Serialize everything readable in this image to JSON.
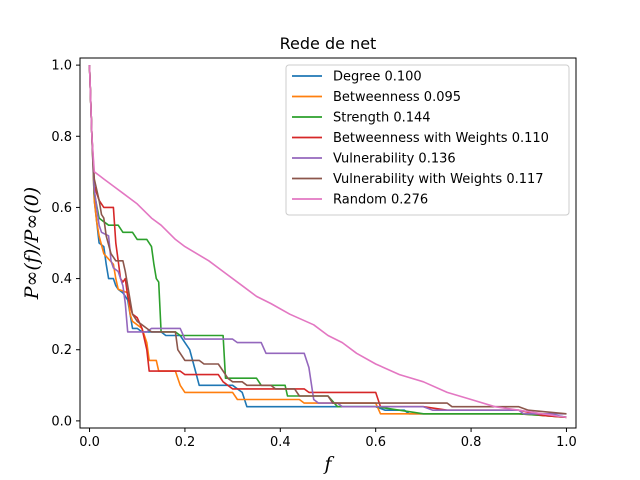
{
  "chart_data": {
    "type": "line",
    "title": "Rede de net",
    "xlabel": "f",
    "ylabel": "P∞(f)/P∞(0)",
    "xlim": [
      -0.02,
      1.02
    ],
    "ylim": [
      -0.02,
      1.02
    ],
    "xticks": [
      "0.0",
      "0.2",
      "0.4",
      "0.6",
      "0.8",
      "1.0"
    ],
    "yticks": [
      "0.0",
      "0.2",
      "0.4",
      "0.6",
      "0.8",
      "1.0"
    ],
    "xtick_values": [
      0,
      0.2,
      0.4,
      0.6,
      0.8,
      1.0
    ],
    "ytick_values": [
      0,
      0.2,
      0.4,
      0.6,
      0.8,
      1.0
    ],
    "grid": false,
    "legend_position": "top-right",
    "series": [
      {
        "name": "Degree 0.100",
        "color": "#1f77b4",
        "points": [
          [
            0,
            1.0
          ],
          [
            0.005,
            0.8
          ],
          [
            0.01,
            0.62
          ],
          [
            0.015,
            0.56
          ],
          [
            0.02,
            0.5
          ],
          [
            0.03,
            0.49
          ],
          [
            0.035,
            0.44
          ],
          [
            0.04,
            0.4
          ],
          [
            0.05,
            0.4
          ],
          [
            0.055,
            0.38
          ],
          [
            0.06,
            0.37
          ],
          [
            0.07,
            0.36
          ],
          [
            0.08,
            0.34
          ],
          [
            0.085,
            0.3
          ],
          [
            0.09,
            0.26
          ],
          [
            0.1,
            0.26
          ],
          [
            0.11,
            0.25
          ],
          [
            0.15,
            0.25
          ],
          [
            0.16,
            0.24
          ],
          [
            0.19,
            0.24
          ],
          [
            0.2,
            0.22
          ],
          [
            0.21,
            0.2
          ],
          [
            0.22,
            0.15
          ],
          [
            0.23,
            0.1
          ],
          [
            0.3,
            0.1
          ],
          [
            0.32,
            0.08
          ],
          [
            0.33,
            0.04
          ],
          [
            0.45,
            0.04
          ],
          [
            0.46,
            0.04
          ],
          [
            0.53,
            0.04
          ],
          [
            0.54,
            0.04
          ],
          [
            0.6,
            0.04
          ],
          [
            0.62,
            0.03
          ],
          [
            0.66,
            0.03
          ],
          [
            0.67,
            0.02
          ],
          [
            0.9,
            0.02
          ],
          [
            0.95,
            0.02
          ],
          [
            0.98,
            0.015
          ],
          [
            1.0,
            0.01
          ]
        ]
      },
      {
        "name": "Betweenness 0.095",
        "color": "#ff7f0e",
        "points": [
          [
            0,
            1.0
          ],
          [
            0.005,
            0.8
          ],
          [
            0.01,
            0.62
          ],
          [
            0.015,
            0.56
          ],
          [
            0.02,
            0.52
          ],
          [
            0.03,
            0.47
          ],
          [
            0.05,
            0.44
          ],
          [
            0.055,
            0.4
          ],
          [
            0.06,
            0.37
          ],
          [
            0.08,
            0.36
          ],
          [
            0.085,
            0.3
          ],
          [
            0.09,
            0.28
          ],
          [
            0.1,
            0.27
          ],
          [
            0.11,
            0.26
          ],
          [
            0.12,
            0.22
          ],
          [
            0.125,
            0.17
          ],
          [
            0.14,
            0.17
          ],
          [
            0.145,
            0.14
          ],
          [
            0.18,
            0.14
          ],
          [
            0.19,
            0.1
          ],
          [
            0.2,
            0.08
          ],
          [
            0.3,
            0.08
          ],
          [
            0.31,
            0.06
          ],
          [
            0.4,
            0.06
          ],
          [
            0.44,
            0.06
          ],
          [
            0.45,
            0.05
          ],
          [
            0.6,
            0.05
          ],
          [
            0.61,
            0.02
          ],
          [
            0.7,
            0.02
          ],
          [
            0.9,
            0.02
          ],
          [
            0.95,
            0.015
          ],
          [
            1.0,
            0.01
          ]
        ]
      },
      {
        "name": "Strength 0.144",
        "color": "#2ca02c",
        "points": [
          [
            0,
            1.0
          ],
          [
            0.005,
            0.8
          ],
          [
            0.01,
            0.64
          ],
          [
            0.02,
            0.57
          ],
          [
            0.03,
            0.56
          ],
          [
            0.04,
            0.55
          ],
          [
            0.06,
            0.55
          ],
          [
            0.07,
            0.53
          ],
          [
            0.09,
            0.53
          ],
          [
            0.1,
            0.51
          ],
          [
            0.12,
            0.51
          ],
          [
            0.13,
            0.49
          ],
          [
            0.135,
            0.44
          ],
          [
            0.14,
            0.4
          ],
          [
            0.145,
            0.39
          ],
          [
            0.15,
            0.25
          ],
          [
            0.18,
            0.25
          ],
          [
            0.19,
            0.24
          ],
          [
            0.28,
            0.24
          ],
          [
            0.285,
            0.12
          ],
          [
            0.35,
            0.12
          ],
          [
            0.36,
            0.1
          ],
          [
            0.41,
            0.1
          ],
          [
            0.415,
            0.07
          ],
          [
            0.5,
            0.07
          ],
          [
            0.52,
            0.04
          ],
          [
            0.6,
            0.04
          ],
          [
            0.65,
            0.03
          ],
          [
            0.7,
            0.02
          ],
          [
            0.9,
            0.02
          ],
          [
            0.95,
            0.015
          ],
          [
            1.0,
            0.01
          ]
        ]
      },
      {
        "name": "Betweenness with Weights 0.110",
        "color": "#d62728",
        "points": [
          [
            0,
            1.0
          ],
          [
            0.005,
            0.8
          ],
          [
            0.01,
            0.66
          ],
          [
            0.02,
            0.62
          ],
          [
            0.03,
            0.6
          ],
          [
            0.05,
            0.6
          ],
          [
            0.055,
            0.5
          ],
          [
            0.06,
            0.45
          ],
          [
            0.065,
            0.4
          ],
          [
            0.07,
            0.39
          ],
          [
            0.075,
            0.4
          ],
          [
            0.08,
            0.35
          ],
          [
            0.09,
            0.3
          ],
          [
            0.1,
            0.29
          ],
          [
            0.11,
            0.26
          ],
          [
            0.12,
            0.2
          ],
          [
            0.125,
            0.14
          ],
          [
            0.19,
            0.14
          ],
          [
            0.2,
            0.13
          ],
          [
            0.27,
            0.13
          ],
          [
            0.28,
            0.11
          ],
          [
            0.3,
            0.09
          ],
          [
            0.45,
            0.09
          ],
          [
            0.46,
            0.08
          ],
          [
            0.6,
            0.08
          ],
          [
            0.61,
            0.04
          ],
          [
            0.7,
            0.04
          ],
          [
            0.75,
            0.03
          ],
          [
            0.9,
            0.03
          ],
          [
            0.95,
            0.015
          ],
          [
            1.0,
            0.01
          ]
        ]
      },
      {
        "name": "Vulnerability 0.136",
        "color": "#9467bd",
        "points": [
          [
            0,
            1.0
          ],
          [
            0.005,
            0.8
          ],
          [
            0.01,
            0.65
          ],
          [
            0.02,
            0.55
          ],
          [
            0.025,
            0.53
          ],
          [
            0.04,
            0.52
          ],
          [
            0.045,
            0.45
          ],
          [
            0.05,
            0.43
          ],
          [
            0.06,
            0.42
          ],
          [
            0.07,
            0.38
          ],
          [
            0.075,
            0.33
          ],
          [
            0.08,
            0.25
          ],
          [
            0.12,
            0.25
          ],
          [
            0.13,
            0.26
          ],
          [
            0.19,
            0.26
          ],
          [
            0.2,
            0.23
          ],
          [
            0.3,
            0.23
          ],
          [
            0.31,
            0.22
          ],
          [
            0.36,
            0.22
          ],
          [
            0.37,
            0.19
          ],
          [
            0.45,
            0.19
          ],
          [
            0.46,
            0.15
          ],
          [
            0.47,
            0.06
          ],
          [
            0.48,
            0.05
          ],
          [
            0.52,
            0.05
          ],
          [
            0.53,
            0.04
          ],
          [
            0.7,
            0.04
          ],
          [
            0.72,
            0.03
          ],
          [
            0.9,
            0.03
          ],
          [
            0.91,
            0.02
          ],
          [
            1.0,
            0.02
          ]
        ]
      },
      {
        "name": "Vulnerability with Weights 0.117",
        "color": "#8c564b",
        "points": [
          [
            0,
            1.0
          ],
          [
            0.005,
            0.8
          ],
          [
            0.01,
            0.68
          ],
          [
            0.02,
            0.62
          ],
          [
            0.025,
            0.58
          ],
          [
            0.03,
            0.57
          ],
          [
            0.035,
            0.52
          ],
          [
            0.045,
            0.47
          ],
          [
            0.05,
            0.46
          ],
          [
            0.055,
            0.45
          ],
          [
            0.07,
            0.45
          ],
          [
            0.075,
            0.42
          ],
          [
            0.08,
            0.38
          ],
          [
            0.09,
            0.3
          ],
          [
            0.1,
            0.28
          ],
          [
            0.11,
            0.27
          ],
          [
            0.12,
            0.26
          ],
          [
            0.13,
            0.25
          ],
          [
            0.18,
            0.25
          ],
          [
            0.185,
            0.2
          ],
          [
            0.2,
            0.17
          ],
          [
            0.23,
            0.17
          ],
          [
            0.24,
            0.16
          ],
          [
            0.27,
            0.16
          ],
          [
            0.28,
            0.14
          ],
          [
            0.29,
            0.12
          ],
          [
            0.3,
            0.11
          ],
          [
            0.32,
            0.11
          ],
          [
            0.33,
            0.1
          ],
          [
            0.38,
            0.1
          ],
          [
            0.39,
            0.09
          ],
          [
            0.43,
            0.09
          ],
          [
            0.44,
            0.07
          ],
          [
            0.5,
            0.07
          ],
          [
            0.51,
            0.05
          ],
          [
            0.75,
            0.05
          ],
          [
            0.76,
            0.04
          ],
          [
            0.9,
            0.04
          ],
          [
            0.92,
            0.03
          ],
          [
            1.0,
            0.02
          ]
        ]
      },
      {
        "name": "Random 0.276",
        "color": "#e377c2",
        "points": [
          [
            0,
            1.0
          ],
          [
            0.005,
            0.8
          ],
          [
            0.01,
            0.7
          ],
          [
            0.02,
            0.69
          ],
          [
            0.03,
            0.68
          ],
          [
            0.05,
            0.66
          ],
          [
            0.07,
            0.64
          ],
          [
            0.1,
            0.61
          ],
          [
            0.13,
            0.57
          ],
          [
            0.15,
            0.55
          ],
          [
            0.18,
            0.51
          ],
          [
            0.2,
            0.49
          ],
          [
            0.25,
            0.45
          ],
          [
            0.28,
            0.42
          ],
          [
            0.32,
            0.38
          ],
          [
            0.35,
            0.35
          ],
          [
            0.38,
            0.33
          ],
          [
            0.42,
            0.3
          ],
          [
            0.47,
            0.27
          ],
          [
            0.5,
            0.24
          ],
          [
            0.53,
            0.22
          ],
          [
            0.56,
            0.19
          ],
          [
            0.6,
            0.16
          ],
          [
            0.65,
            0.13
          ],
          [
            0.7,
            0.11
          ],
          [
            0.75,
            0.08
          ],
          [
            0.8,
            0.06
          ],
          [
            0.85,
            0.04
          ],
          [
            0.9,
            0.03
          ],
          [
            0.95,
            0.02
          ],
          [
            1.0,
            0.01
          ]
        ]
      }
    ]
  }
}
